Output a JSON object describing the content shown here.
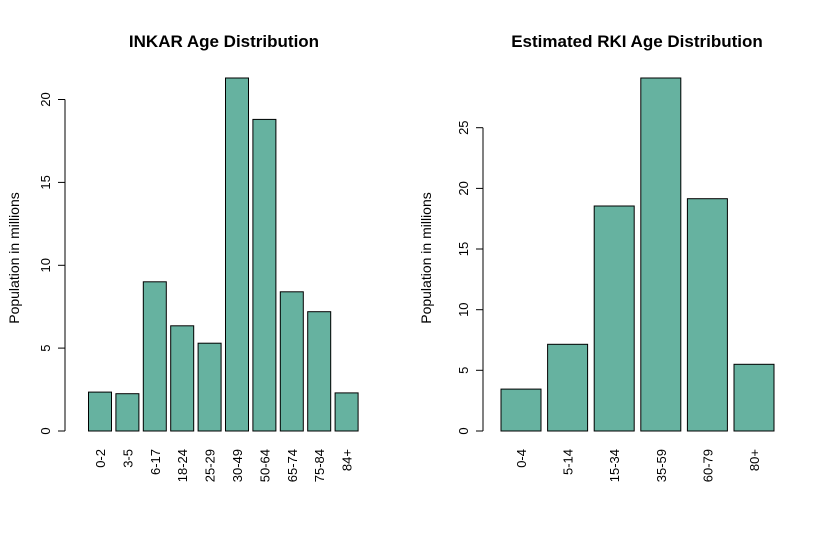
{
  "colors": {
    "bar_fill": "#66b2a0",
    "bar_stroke": "#000000"
  },
  "chart_data": [
    {
      "type": "bar",
      "title": "INKAR Age Distribution",
      "ylabel": "Population in millions",
      "xlabel": "",
      "categories": [
        "0-2",
        "3-5",
        "6-17",
        "18-24",
        "25-29",
        "30-49",
        "50-64",
        "65-74",
        "75-84",
        "84+"
      ],
      "values": [
        2.35,
        2.25,
        9.0,
        6.35,
        5.3,
        21.3,
        18.8,
        8.4,
        7.2,
        2.3
      ],
      "yticks": [
        0,
        5,
        10,
        15,
        20
      ],
      "ylim": [
        0,
        21.3
      ]
    },
    {
      "type": "bar",
      "title": "Estimated RKI Age Distribution",
      "ylabel": "Population in millions",
      "xlabel": "",
      "categories": [
        "0-4",
        "5-14",
        "15-34",
        "35-59",
        "60-79",
        "80+"
      ],
      "values": [
        3.45,
        7.15,
        18.55,
        29.1,
        19.15,
        5.5
      ],
      "yticks": [
        0,
        5,
        10,
        15,
        20,
        25
      ],
      "ylim": [
        0,
        29.1
      ]
    }
  ]
}
